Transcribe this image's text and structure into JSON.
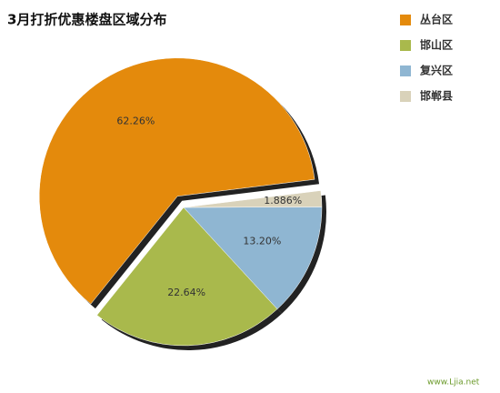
{
  "chart_data": {
    "type": "pie",
    "title": "3月打折优惠楼盘区域分布",
    "categories": [
      "丛台区",
      "邯山区",
      "复兴区",
      "邯郸县"
    ],
    "values": [
      62.26,
      22.64,
      13.2,
      1.886
    ],
    "value_labels": [
      "62.26%",
      "22.64%",
      "13.20%",
      "1.886%"
    ],
    "colors": [
      "#e48a0c",
      "#a9b94c",
      "#8fb6d2",
      "#d9d2ba"
    ],
    "legend": "right",
    "watermark": "www.Ljia.net"
  }
}
